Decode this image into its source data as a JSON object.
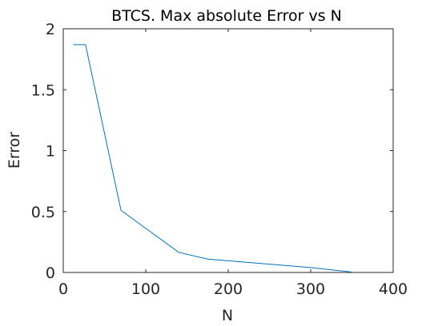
{
  "chart_data": {
    "type": "line",
    "title": "BTCS. Max absolute Error vs N",
    "xlabel": "N",
    "ylabel": "Error",
    "xlim": [
      0,
      400
    ],
    "ylim": [
      0,
      2
    ],
    "xticks": [
      "0",
      "100",
      "200",
      "300",
      "400"
    ],
    "yticks": [
      "0",
      "0.5",
      "1",
      "1.5",
      "2"
    ],
    "grid": false,
    "legend": "none",
    "line_color": "#0072bd",
    "series": [
      {
        "x": [
          12,
          27,
          70,
          140,
          175,
          300,
          350
        ],
        "y": [
          1.87,
          1.87,
          0.51,
          0.165,
          0.11,
          0.04,
          0.003
        ]
      }
    ]
  }
}
